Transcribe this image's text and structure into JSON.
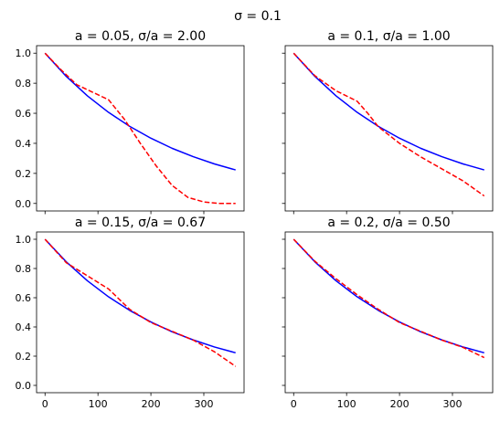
{
  "suptitle": "σ = 0.1",
  "colors": {
    "exact": "#0000ff",
    "approx": "#ff0000"
  },
  "chart_data": [
    {
      "type": "line",
      "title": "a = 0.05, σ/a = 2.00",
      "xlim": [
        -16,
        376
      ],
      "ylim": [
        -0.05,
        1.05
      ],
      "xticks": [
        0,
        100,
        200,
        300
      ],
      "xticks_labeled": false,
      "yticks": [
        0.0,
        0.2,
        0.4,
        0.6,
        0.8,
        1.0
      ],
      "yticks_labeled": true,
      "series": [
        {
          "style": "solid",
          "color": "#0000ff",
          "x": [
            0,
            40,
            80,
            120,
            160,
            200,
            240,
            280,
            320,
            360
          ],
          "y": [
            1.0,
            0.846,
            0.716,
            0.606,
            0.513,
            0.434,
            0.367,
            0.311,
            0.263,
            0.223
          ]
        },
        {
          "style": "dashed",
          "color": "#ff0000",
          "x": [
            0,
            30,
            60,
            90,
            120,
            150,
            180,
            210,
            240,
            270,
            300,
            330,
            360
          ],
          "y": [
            1.0,
            0.89,
            0.79,
            0.74,
            0.69,
            0.56,
            0.4,
            0.25,
            0.12,
            0.04,
            0.01,
            0.0,
            0.0
          ]
        }
      ]
    },
    {
      "type": "line",
      "title": "a = 0.1, σ/a = 1.00",
      "xlim": [
        -16,
        376
      ],
      "ylim": [
        -0.05,
        1.05
      ],
      "xticks": [
        0,
        100,
        200,
        300
      ],
      "xticks_labeled": false,
      "yticks": [
        0.0,
        0.2,
        0.4,
        0.6,
        0.8,
        1.0
      ],
      "yticks_labeled": false,
      "series": [
        {
          "style": "solid",
          "color": "#0000ff",
          "x": [
            0,
            40,
            80,
            120,
            160,
            200,
            240,
            280,
            320,
            360
          ],
          "y": [
            1.0,
            0.846,
            0.716,
            0.606,
            0.513,
            0.434,
            0.367,
            0.311,
            0.263,
            0.223
          ]
        },
        {
          "style": "dashed",
          "color": "#ff0000",
          "x": [
            0,
            40,
            80,
            120,
            140,
            160,
            200,
            240,
            280,
            320,
            360
          ],
          "y": [
            1.0,
            0.85,
            0.75,
            0.68,
            0.6,
            0.51,
            0.4,
            0.31,
            0.23,
            0.15,
            0.05
          ]
        }
      ]
    },
    {
      "type": "line",
      "title": "a = 0.15, σ/a = 0.67",
      "xlim": [
        -16,
        376
      ],
      "ylim": [
        -0.05,
        1.05
      ],
      "xticks": [
        0,
        100,
        200,
        300
      ],
      "xticks_labeled": true,
      "yticks": [
        0.0,
        0.2,
        0.4,
        0.6,
        0.8,
        1.0
      ],
      "yticks_labeled": true,
      "series": [
        {
          "style": "solid",
          "color": "#0000ff",
          "x": [
            0,
            40,
            80,
            120,
            160,
            200,
            240,
            280,
            320,
            360
          ],
          "y": [
            1.0,
            0.846,
            0.716,
            0.606,
            0.513,
            0.434,
            0.367,
            0.311,
            0.263,
            0.223
          ]
        },
        {
          "style": "dashed",
          "color": "#ff0000",
          "x": [
            0,
            40,
            80,
            120,
            160,
            200,
            240,
            280,
            320,
            360
          ],
          "y": [
            1.0,
            0.84,
            0.75,
            0.66,
            0.52,
            0.43,
            0.37,
            0.31,
            0.23,
            0.13
          ]
        }
      ]
    },
    {
      "type": "line",
      "title": "a = 0.2, σ/a = 0.50",
      "xlim": [
        -16,
        376
      ],
      "ylim": [
        -0.05,
        1.05
      ],
      "xticks": [
        0,
        100,
        200,
        300
      ],
      "xticks_labeled": true,
      "yticks": [
        0.0,
        0.2,
        0.4,
        0.6,
        0.8,
        1.0
      ],
      "yticks_labeled": false,
      "series": [
        {
          "style": "solid",
          "color": "#0000ff",
          "x": [
            0,
            40,
            80,
            120,
            160,
            200,
            240,
            280,
            320,
            360
          ],
          "y": [
            1.0,
            0.846,
            0.716,
            0.606,
            0.513,
            0.434,
            0.367,
            0.311,
            0.263,
            0.223
          ]
        },
        {
          "style": "dashed",
          "color": "#ff0000",
          "x": [
            0,
            40,
            80,
            120,
            160,
            200,
            240,
            280,
            320,
            360
          ],
          "y": [
            1.0,
            0.85,
            0.73,
            0.62,
            0.52,
            0.43,
            0.37,
            0.31,
            0.26,
            0.19
          ]
        }
      ]
    }
  ]
}
